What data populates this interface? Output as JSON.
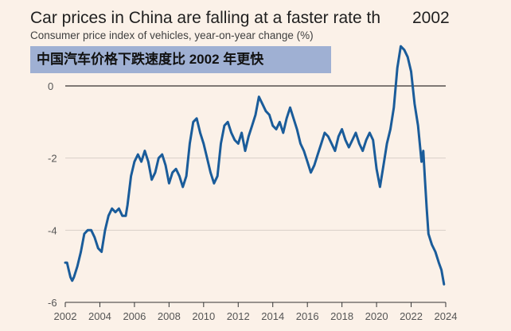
{
  "header": {
    "title_main": "Car prices in China are falling at a faster rate th",
    "title_year": "2002",
    "subtitle": "Consumer price index of vehicles, year-on-year change (%)",
    "chinese_banner": "中国汽车价格下跌速度比 2002 年更快"
  },
  "colors": {
    "background": "#fbf1e8",
    "series": "#1a5c9a",
    "banner": "#9fb0d3"
  },
  "chart_data": {
    "type": "line",
    "title": "Car prices in China are falling at a faster rate th 2002",
    "subtitle": "Consumer price index of vehicles, year-on-year change (%)",
    "xlabel": "",
    "ylabel": "",
    "xlim": [
      2002,
      2024
    ],
    "ylim": [
      -6,
      0.5
    ],
    "x_ticks": [
      "2002",
      "2004",
      "2006",
      "2008",
      "2010",
      "2012",
      "2014",
      "2016",
      "2018",
      "2020",
      "2022",
      "2024"
    ],
    "y_ticks": [
      "0",
      "-2",
      "-4",
      "-6"
    ],
    "grid": true,
    "series": [
      {
        "values": [
          [
            2002.0,
            -4.9
          ],
          [
            2002.1,
            -4.9
          ],
          [
            2002.2,
            -5.1
          ],
          [
            2002.3,
            -5.3
          ],
          [
            2002.4,
            -5.4
          ],
          [
            2002.5,
            -5.3
          ],
          [
            2002.7,
            -5.0
          ],
          [
            2002.9,
            -4.6
          ],
          [
            2003.1,
            -4.1
          ],
          [
            2003.3,
            -4.0
          ],
          [
            2003.5,
            -4.0
          ],
          [
            2003.7,
            -4.2
          ],
          [
            2003.9,
            -4.5
          ],
          [
            2004.1,
            -4.6
          ],
          [
            2004.3,
            -4.0
          ],
          [
            2004.5,
            -3.6
          ],
          [
            2004.7,
            -3.4
          ],
          [
            2004.9,
            -3.5
          ],
          [
            2005.1,
            -3.4
          ],
          [
            2005.3,
            -3.6
          ],
          [
            2005.5,
            -3.6
          ],
          [
            2005.6,
            -3.3
          ],
          [
            2005.8,
            -2.5
          ],
          [
            2006.0,
            -2.1
          ],
          [
            2006.2,
            -1.9
          ],
          [
            2006.4,
            -2.1
          ],
          [
            2006.6,
            -1.8
          ],
          [
            2006.8,
            -2.1
          ],
          [
            2007.0,
            -2.6
          ],
          [
            2007.2,
            -2.4
          ],
          [
            2007.4,
            -2.0
          ],
          [
            2007.6,
            -1.9
          ],
          [
            2007.8,
            -2.2
          ],
          [
            2008.0,
            -2.7
          ],
          [
            2008.2,
            -2.4
          ],
          [
            2008.4,
            -2.3
          ],
          [
            2008.6,
            -2.5
          ],
          [
            2008.8,
            -2.8
          ],
          [
            2009.0,
            -2.5
          ],
          [
            2009.2,
            -1.6
          ],
          [
            2009.4,
            -1.0
          ],
          [
            2009.6,
            -0.9
          ],
          [
            2009.8,
            -1.3
          ],
          [
            2010.0,
            -1.6
          ],
          [
            2010.2,
            -2.0
          ],
          [
            2010.4,
            -2.4
          ],
          [
            2010.6,
            -2.7
          ],
          [
            2010.8,
            -2.5
          ],
          [
            2011.0,
            -1.6
          ],
          [
            2011.2,
            -1.1
          ],
          [
            2011.4,
            -1.0
          ],
          [
            2011.6,
            -1.3
          ],
          [
            2011.8,
            -1.5
          ],
          [
            2012.0,
            -1.6
          ],
          [
            2012.2,
            -1.3
          ],
          [
            2012.4,
            -1.8
          ],
          [
            2012.6,
            -1.4
          ],
          [
            2012.8,
            -1.1
          ],
          [
            2013.0,
            -0.8
          ],
          [
            2013.2,
            -0.3
          ],
          [
            2013.4,
            -0.5
          ],
          [
            2013.6,
            -0.7
          ],
          [
            2013.8,
            -0.8
          ],
          [
            2014.0,
            -1.1
          ],
          [
            2014.2,
            -1.2
          ],
          [
            2014.4,
            -1.0
          ],
          [
            2014.6,
            -1.3
          ],
          [
            2014.8,
            -0.9
          ],
          [
            2015.0,
            -0.6
          ],
          [
            2015.2,
            -0.9
          ],
          [
            2015.4,
            -1.2
          ],
          [
            2015.6,
            -1.6
          ],
          [
            2015.8,
            -1.8
          ],
          [
            2016.0,
            -2.1
          ],
          [
            2016.2,
            -2.4
          ],
          [
            2016.4,
            -2.2
          ],
          [
            2016.6,
            -1.9
          ],
          [
            2016.8,
            -1.6
          ],
          [
            2017.0,
            -1.3
          ],
          [
            2017.2,
            -1.4
          ],
          [
            2017.4,
            -1.6
          ],
          [
            2017.6,
            -1.8
          ],
          [
            2017.8,
            -1.4
          ],
          [
            2018.0,
            -1.2
          ],
          [
            2018.2,
            -1.5
          ],
          [
            2018.4,
            -1.7
          ],
          [
            2018.6,
            -1.5
          ],
          [
            2018.8,
            -1.3
          ],
          [
            2019.0,
            -1.6
          ],
          [
            2019.2,
            -1.8
          ],
          [
            2019.4,
            -1.5
          ],
          [
            2019.6,
            -1.3
          ],
          [
            2019.8,
            -1.5
          ],
          [
            2020.0,
            -2.3
          ],
          [
            2020.2,
            -2.8
          ],
          [
            2020.4,
            -2.2
          ],
          [
            2020.6,
            -1.6
          ],
          [
            2020.8,
            -1.2
          ],
          [
            2021.0,
            -0.6
          ],
          [
            2021.2,
            0.5
          ],
          [
            2021.4,
            1.1
          ],
          [
            2021.6,
            1.0
          ],
          [
            2021.8,
            0.8
          ],
          [
            2022.0,
            0.4
          ],
          [
            2022.2,
            -0.5
          ],
          [
            2022.4,
            -1.1
          ],
          [
            2022.6,
            -2.1
          ],
          [
            2022.7,
            -1.8
          ],
          [
            2022.8,
            -2.6
          ],
          [
            2022.9,
            -3.4
          ],
          [
            2023.0,
            -4.1
          ],
          [
            2023.2,
            -4.4
          ],
          [
            2023.4,
            -4.6
          ],
          [
            2023.6,
            -4.9
          ],
          [
            2023.75,
            -5.1
          ],
          [
            2023.9,
            -5.5
          ]
        ]
      }
    ]
  }
}
